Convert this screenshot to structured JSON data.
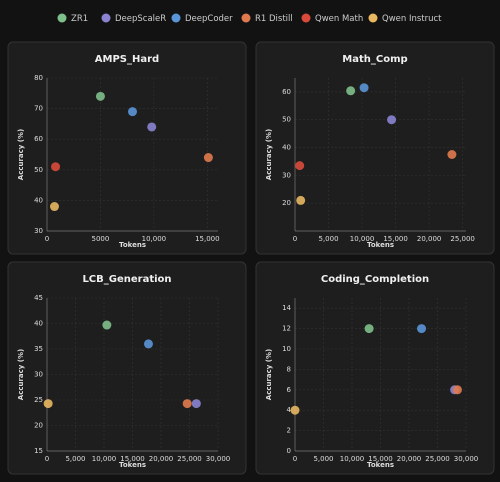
{
  "chart_data": [
    {
      "type": "scatter",
      "title": "AMPS_Hard",
      "xlabel": "Tokens",
      "ylabel": "Accuracy (%)",
      "xlim": [
        0,
        16000
      ],
      "ylim": [
        30,
        80
      ],
      "grid": true,
      "xticks": [
        0,
        {
          "value": 5000,
          "label": "5000"
        },
        {
          "value": 10000,
          "label": "10,000"
        },
        {
          "value": 15000,
          "label": "15,000"
        }
      ],
      "yticks": [
        30,
        40,
        50,
        60,
        70,
        80
      ],
      "series": [
        {
          "name": "ZR1",
          "color": "#7fbf8a",
          "x": [
            5000
          ],
          "y": [
            74
          ]
        },
        {
          "name": "DeepScaleR",
          "color": "#8a84d0",
          "x": [
            9800
          ],
          "y": [
            64
          ]
        },
        {
          "name": "DeepCoder",
          "color": "#5a95d8",
          "x": [
            8000
          ],
          "y": [
            69
          ]
        },
        {
          "name": "R1 Distill",
          "color": "#e07a4e",
          "x": [
            15100
          ],
          "y": [
            54
          ]
        },
        {
          "name": "Qwen Math",
          "color": "#d84a3a",
          "x": [
            800
          ],
          "y": [
            51
          ]
        },
        {
          "name": "Qwen Instruct",
          "color": "#e8b760",
          "x": [
            700
          ],
          "y": [
            38
          ]
        }
      ]
    },
    {
      "type": "scatter",
      "title": "Math_Comp",
      "xlabel": "Tokens",
      "ylabel": "Accuracy (%)",
      "xlim": [
        0,
        25500
      ],
      "ylim": [
        10,
        65
      ],
      "grid": true,
      "xticks": [
        0,
        {
          "value": 5000,
          "label": "5,000"
        },
        {
          "value": 10000,
          "label": "10,000"
        },
        {
          "value": 15000,
          "label": "15,000"
        },
        {
          "value": 20000,
          "label": "20,000"
        },
        {
          "value": 25000,
          "label": "25,000"
        }
      ],
      "yticks": [
        20,
        30,
        40,
        50,
        60
      ],
      "series": [
        {
          "name": "ZR1",
          "color": "#7fbf8a",
          "x": [
            8300
          ],
          "y": [
            60.4
          ]
        },
        {
          "name": "DeepScaleR",
          "color": "#8a84d0",
          "x": [
            14400
          ],
          "y": [
            50
          ]
        },
        {
          "name": "DeepCoder",
          "color": "#5a95d8",
          "x": [
            10300
          ],
          "y": [
            61.5
          ]
        },
        {
          "name": "R1 Distill",
          "color": "#e07a4e",
          "x": [
            23400
          ],
          "y": [
            37.5
          ]
        },
        {
          "name": "Qwen Math",
          "color": "#d84a3a",
          "x": [
            700
          ],
          "y": [
            33.5
          ]
        },
        {
          "name": "Qwen Instruct",
          "color": "#e8b760",
          "x": [
            850
          ],
          "y": [
            21
          ]
        }
      ]
    },
    {
      "type": "scatter",
      "title": "LCB_Generation",
      "xlabel": "Tokens",
      "ylabel": "Accuracy (%)",
      "xlim": [
        0,
        30000
      ],
      "ylim": [
        15,
        45
      ],
      "grid": true,
      "xticks": [
        0,
        {
          "value": 5000,
          "label": "5,000"
        },
        {
          "value": 10000,
          "label": "10,000"
        },
        {
          "value": 15000,
          "label": "15,000"
        },
        {
          "value": 20000,
          "label": "20,000"
        },
        {
          "value": 25000,
          "label": "25,000"
        },
        {
          "value": 30000,
          "label": "30,000"
        }
      ],
      "yticks": [
        15,
        20,
        25,
        30,
        35,
        40,
        45
      ],
      "series": [
        {
          "name": "ZR1",
          "color": "#7fbf8a",
          "x": [
            10500
          ],
          "y": [
            39.7
          ]
        },
        {
          "name": "DeepScaleR",
          "color": "#8a84d0",
          "x": [
            26200
          ],
          "y": [
            24.3
          ]
        },
        {
          "name": "DeepCoder",
          "color": "#5a95d8",
          "x": [
            17800
          ],
          "y": [
            36
          ]
        },
        {
          "name": "R1 Distill",
          "color": "#e07a4e",
          "x": [
            24600
          ],
          "y": [
            24.3
          ]
        },
        {
          "name": "Qwen Instruct",
          "color": "#e8b760",
          "x": [
            200
          ],
          "y": [
            24.3
          ]
        }
      ]
    },
    {
      "type": "scatter",
      "title": "Coding_Completion",
      "xlabel": "Tokens",
      "ylabel": "Accuracy (%)",
      "xlim": [
        0,
        30000
      ],
      "ylim": [
        0,
        15
      ],
      "grid": true,
      "xticks": [
        0,
        {
          "value": 5000,
          "label": "5,000"
        },
        {
          "value": 10000,
          "label": "10,000"
        },
        {
          "value": 15000,
          "label": "15,000"
        },
        {
          "value": 20000,
          "label": "20,000"
        },
        {
          "value": 25000,
          "label": "25,000"
        },
        {
          "value": 30000,
          "label": "30,000"
        }
      ],
      "yticks": [
        0,
        2,
        4,
        6,
        8,
        10,
        12,
        14
      ],
      "series": [
        {
          "name": "ZR1",
          "color": "#7fbf8a",
          "x": [
            13000
          ],
          "y": [
            12
          ]
        },
        {
          "name": "DeepScaleR",
          "color": "#8a84d0",
          "x": [
            28000
          ],
          "y": [
            6
          ]
        },
        {
          "name": "DeepCoder",
          "color": "#5a95d8",
          "x": [
            22200
          ],
          "y": [
            12
          ]
        },
        {
          "name": "R1 Distill",
          "color": "#e07a4e",
          "x": [
            28500
          ],
          "y": [
            6
          ]
        },
        {
          "name": "Qwen Instruct",
          "color": "#e8b760",
          "x": [
            0
          ],
          "y": [
            4
          ]
        }
      ]
    }
  ]
}
